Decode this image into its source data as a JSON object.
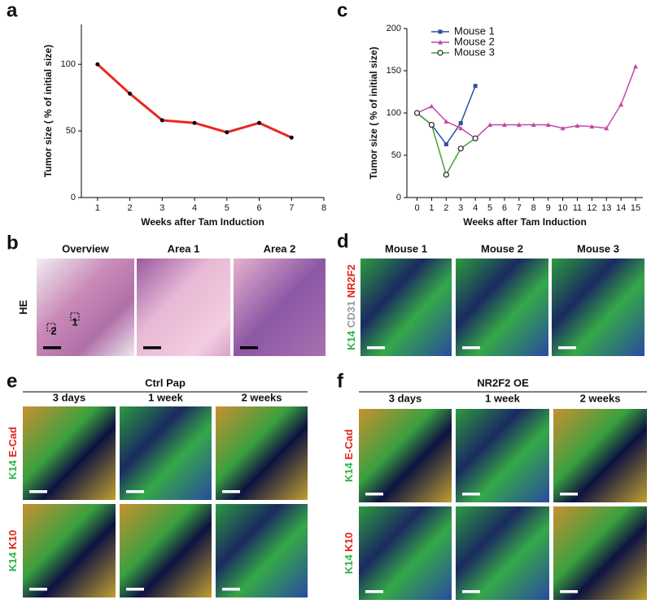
{
  "chart_data": [
    {
      "type": "line",
      "panel": "a",
      "x": [
        1,
        2,
        3,
        4,
        5,
        6,
        7
      ],
      "values": [
        100,
        78,
        58,
        56,
        49,
        56,
        45
      ],
      "color": "#e8281e",
      "marker": "dot",
      "xlim": [
        0.5,
        8
      ],
      "xticks": [
        1,
        2,
        3,
        4,
        5,
        6,
        7,
        8
      ],
      "ylim": [
        0,
        130
      ],
      "yticks": [
        0,
        50,
        100
      ],
      "x_label": "Weeks after Tam Induction",
      "y_label": "Tumor size ( % of initial size)"
    },
    {
      "type": "line",
      "panel": "c",
      "legend": "upper left",
      "series": [
        {
          "name": "Mouse 1",
          "color": "#2f4fa2",
          "marker": "square",
          "x": [
            0,
            1,
            2,
            3,
            4
          ],
          "values": [
            100,
            86,
            63,
            88,
            132
          ]
        },
        {
          "name": "Mouse 2",
          "color": "#c447a8",
          "marker": "triangle",
          "x": [
            0,
            1,
            2,
            3,
            4,
            5,
            6,
            7,
            8,
            9,
            10,
            11,
            12,
            13,
            14,
            15
          ],
          "values": [
            100,
            108,
            90,
            82,
            70,
            86,
            86,
            86,
            86,
            86,
            82,
            85,
            84,
            82,
            110,
            155
          ]
        },
        {
          "name": "Mouse 3",
          "color": "#3fa535",
          "marker": "circle",
          "x": [
            0,
            1,
            2,
            3,
            4
          ],
          "values": [
            100,
            86,
            27,
            58,
            70
          ]
        }
      ],
      "xlim": [
        -0.7,
        15.5
      ],
      "xticks": [
        0,
        1,
        2,
        3,
        4,
        5,
        6,
        7,
        8,
        9,
        10,
        11,
        12,
        13,
        14,
        15
      ],
      "ylim": [
        0,
        200
      ],
      "yticks": [
        0,
        50,
        100,
        150,
        200
      ],
      "x_label": "Weeks after Tam Induction",
      "y_label": "Tumor size ( % of initial size)"
    }
  ],
  "figure": {
    "b": {
      "letter": "b",
      "headers": [
        "Overview",
        "Area 1",
        "Area 2"
      ],
      "row_labels": [
        [
          {
            "text": "HE",
            "color": "#111111"
          }
        ]
      ],
      "region_labels": [
        "2",
        "1"
      ]
    },
    "d": {
      "letter": "d",
      "headers": [
        "Mouse 1",
        "Mouse 2",
        "Mouse 3"
      ],
      "row_labels": [
        [
          {
            "text": "K14",
            "color": "#2db34a"
          },
          {
            "text": "CD31",
            "color": "#999999"
          },
          {
            "text": "NR2F2",
            "color": "#e2231a"
          }
        ]
      ]
    },
    "e": {
      "letter": "e",
      "group": "Ctrl Pap",
      "headers": [
        "3 days",
        "1 week",
        "2 weeks"
      ],
      "row_labels": [
        [
          {
            "text": "K14",
            "color": "#2db34a"
          },
          {
            "text": "E-Cad",
            "color": "#e2231a"
          }
        ],
        [
          {
            "text": "K14",
            "color": "#2db34a"
          },
          {
            "text": "K10",
            "color": "#e2231a"
          }
        ]
      ]
    },
    "f": {
      "letter": "f",
      "group": "NR2F2 OE",
      "headers": [
        "3 days",
        "1 week",
        "2 weeks"
      ],
      "row_labels": [
        [
          {
            "text": "K14",
            "color": "#2db34a"
          },
          {
            "text": "E-Cad",
            "color": "#e2231a"
          }
        ],
        [
          {
            "text": "K14",
            "color": "#2db34a"
          },
          {
            "text": "K10",
            "color": "#e2231a"
          }
        ]
      ]
    }
  }
}
